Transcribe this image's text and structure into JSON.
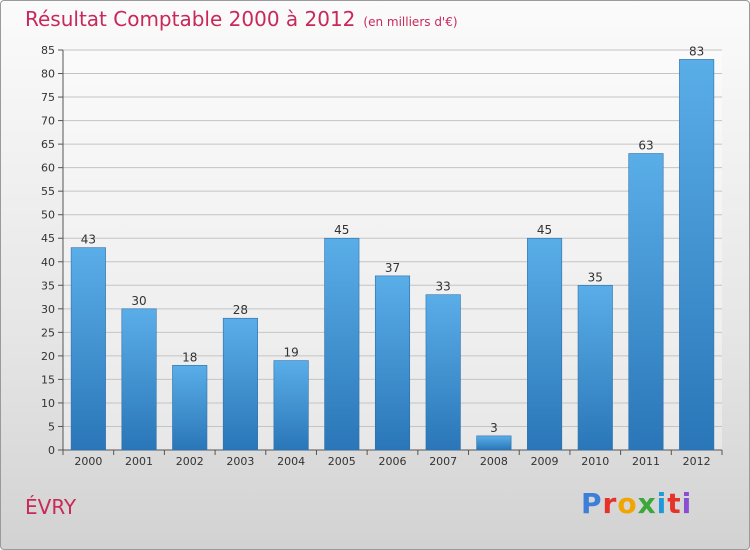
{
  "header": {
    "title": "Résultat Comptable 2000 à 2012",
    "subtitle": "(en milliers d'€)"
  },
  "footer": {
    "city": "ÉVRY",
    "logo": "Proxiti",
    "logo_colors": [
      "#3b7fd8",
      "#e6332a",
      "#f0a500",
      "#3aa83a",
      "#1e9bd7",
      "#e6332a",
      "#8a4fd0"
    ]
  },
  "chart_data": {
    "type": "bar",
    "title": "Résultat Comptable 2000 à 2012",
    "ylabel": "(en milliers d'€)",
    "xlabel": "",
    "categories": [
      "2000",
      "2001",
      "2002",
      "2003",
      "2004",
      "2005",
      "2006",
      "2007",
      "2008",
      "2009",
      "2010",
      "2011",
      "2012"
    ],
    "values": [
      43,
      30,
      18,
      28,
      19,
      45,
      37,
      33,
      3,
      45,
      35,
      63,
      83
    ],
    "ylim": [
      0,
      85
    ],
    "yticks": [
      0,
      5,
      10,
      15,
      20,
      25,
      30,
      35,
      40,
      45,
      50,
      55,
      60,
      65,
      70,
      75,
      80,
      85
    ],
    "grid": true,
    "bar_color_top": "#5aaee8",
    "bar_color_bottom": "#2a76b8"
  }
}
